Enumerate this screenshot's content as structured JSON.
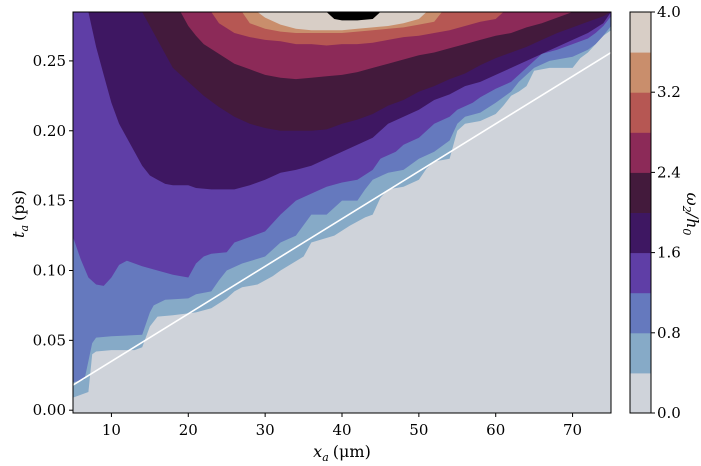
{
  "chart_data": {
    "type": "contourf",
    "xlabel": {
      "symbol": "x",
      "sub": "a",
      "unit": "(μm)"
    },
    "ylabel": {
      "symbol": "t",
      "sub": "a",
      "unit": "(ps)"
    },
    "colorbar_label": {
      "symbol": "ω",
      "sub": "2",
      "tail": "/h",
      "tail_sub": "0"
    },
    "xlim": [
      5,
      75
    ],
    "ylim": [
      -0.002,
      0.285
    ],
    "x_ticks": [
      10,
      20,
      30,
      40,
      50,
      60,
      70
    ],
    "x_tick_labels": [
      "10",
      "20",
      "30",
      "40",
      "50",
      "60",
      "70"
    ],
    "y_ticks": [
      0.0,
      0.05,
      0.1,
      0.15,
      0.2,
      0.25
    ],
    "y_tick_labels": [
      "0.00",
      "0.05",
      "0.10",
      "0.15",
      "0.20",
      "0.25"
    ],
    "levels": [
      0.0,
      0.4,
      0.8,
      1.2,
      1.6,
      2.0,
      2.4,
      2.8,
      3.2,
      3.6,
      4.0
    ],
    "level_colors": [
      "#cfd3da",
      "#86aac7",
      "#6579be",
      "#5f3ea6",
      "#3e1762",
      "#431a3c",
      "#8c2a58",
      "#b65753",
      "#c98e6c",
      "#d8cec6"
    ],
    "colorbar_ticks": [
      0.0,
      0.8,
      1.6,
      2.4,
      3.2,
      4.0
    ],
    "colorbar_tick_labels": [
      "0.0",
      "0.8",
      "1.6",
      "2.4",
      "3.2",
      "4.0"
    ],
    "boundaries": [
      {
        "level": 0.4,
        "points": [
          [
            5,
            0.009
          ],
          [
            7,
            0.013
          ],
          [
            7.5,
            0.04
          ],
          [
            8,
            0.042
          ],
          [
            10,
            0.043
          ],
          [
            13,
            0.043
          ],
          [
            14,
            0.045
          ],
          [
            15,
            0.06
          ],
          [
            16,
            0.067
          ],
          [
            18,
            0.068
          ],
          [
            21,
            0.07
          ],
          [
            23,
            0.073
          ],
          [
            25,
            0.08
          ],
          [
            26,
            0.085
          ],
          [
            27,
            0.088
          ],
          [
            29,
            0.09
          ],
          [
            31,
            0.096
          ],
          [
            32,
            0.1
          ],
          [
            35,
            0.11
          ],
          [
            36,
            0.12
          ],
          [
            39,
            0.125
          ],
          [
            41,
            0.132
          ],
          [
            43,
            0.138
          ],
          [
            44,
            0.14
          ],
          [
            45,
            0.152
          ],
          [
            46,
            0.158
          ],
          [
            48,
            0.16
          ],
          [
            50,
            0.165
          ],
          [
            51,
            0.173
          ],
          [
            52,
            0.178
          ],
          [
            54,
            0.18
          ],
          [
            55,
            0.2
          ],
          [
            56,
            0.205
          ],
          [
            58,
            0.207
          ],
          [
            60,
            0.212
          ],
          [
            61,
            0.218
          ],
          [
            62,
            0.225
          ],
          [
            63,
            0.228
          ],
          [
            64,
            0.232
          ],
          [
            65,
            0.243
          ],
          [
            67,
            0.245
          ],
          [
            70,
            0.245
          ],
          [
            71,
            0.252
          ],
          [
            72,
            0.256
          ],
          [
            73,
            0.262
          ],
          [
            74,
            0.268
          ],
          [
            75,
            0.272
          ]
        ]
      },
      {
        "level": 0.8,
        "points": [
          [
            5,
            0.02
          ],
          [
            6.5,
            0.022
          ],
          [
            7.5,
            0.048
          ],
          [
            8,
            0.052
          ],
          [
            10,
            0.053
          ],
          [
            14,
            0.054
          ],
          [
            15,
            0.07
          ],
          [
            15.5,
            0.075
          ],
          [
            17,
            0.079
          ],
          [
            20,
            0.08
          ],
          [
            21,
            0.083
          ],
          [
            23,
            0.085
          ],
          [
            24,
            0.093
          ],
          [
            25,
            0.1
          ],
          [
            27,
            0.105
          ],
          [
            30,
            0.11
          ],
          [
            32,
            0.12
          ],
          [
            34,
            0.125
          ],
          [
            36,
            0.14
          ],
          [
            38,
            0.14
          ],
          [
            40,
            0.15
          ],
          [
            42,
            0.15
          ],
          [
            43,
            0.158
          ],
          [
            44,
            0.165
          ],
          [
            46,
            0.17
          ],
          [
            48,
            0.172
          ],
          [
            50,
            0.18
          ],
          [
            52,
            0.185
          ],
          [
            54,
            0.193
          ],
          [
            55,
            0.205
          ],
          [
            56,
            0.21
          ],
          [
            58,
            0.213
          ],
          [
            60,
            0.22
          ],
          [
            62,
            0.228
          ],
          [
            63,
            0.235
          ],
          [
            65,
            0.245
          ],
          [
            67,
            0.25
          ],
          [
            70,
            0.253
          ],
          [
            72,
            0.258
          ],
          [
            73,
            0.262
          ],
          [
            74,
            0.268
          ],
          [
            75,
            0.275
          ]
        ]
      },
      {
        "level": 1.2,
        "points": [
          [
            5,
            0.124
          ],
          [
            6,
            0.108
          ],
          [
            7,
            0.095
          ],
          [
            8,
            0.09
          ],
          [
            9,
            0.089
          ],
          [
            10,
            0.095
          ],
          [
            11,
            0.104
          ],
          [
            12,
            0.107
          ],
          [
            14,
            0.103
          ],
          [
            16,
            0.1
          ],
          [
            18,
            0.097
          ],
          [
            20,
            0.095
          ],
          [
            21,
            0.105
          ],
          [
            22,
            0.11
          ],
          [
            23,
            0.112
          ],
          [
            25,
            0.113
          ],
          [
            26,
            0.12
          ],
          [
            28,
            0.124
          ],
          [
            30,
            0.128
          ],
          [
            31,
            0.134
          ],
          [
            32,
            0.14
          ],
          [
            33,
            0.145
          ],
          [
            34,
            0.15
          ],
          [
            36,
            0.155
          ],
          [
            38,
            0.16
          ],
          [
            40,
            0.163
          ],
          [
            42,
            0.165
          ],
          [
            44,
            0.172
          ],
          [
            45,
            0.18
          ],
          [
            47,
            0.185
          ],
          [
            48,
            0.19
          ],
          [
            50,
            0.195
          ],
          [
            52,
            0.205
          ],
          [
            54,
            0.21
          ],
          [
            55,
            0.215
          ],
          [
            57,
            0.22
          ],
          [
            58,
            0.224
          ],
          [
            60,
            0.23
          ],
          [
            62,
            0.235
          ],
          [
            63,
            0.24
          ],
          [
            65,
            0.25
          ],
          [
            66,
            0.255
          ],
          [
            68,
            0.258
          ],
          [
            70,
            0.262
          ],
          [
            72,
            0.266
          ],
          [
            73,
            0.27
          ],
          [
            74,
            0.275
          ],
          [
            75,
            0.282
          ]
        ]
      },
      {
        "level": 1.6,
        "points": [
          [
            7,
            0.285
          ],
          [
            8,
            0.26
          ],
          [
            9,
            0.24
          ],
          [
            10,
            0.22
          ],
          [
            11,
            0.205
          ],
          [
            12,
            0.195
          ],
          [
            13,
            0.185
          ],
          [
            14,
            0.175
          ],
          [
            15,
            0.168
          ],
          [
            16,
            0.165
          ],
          [
            17,
            0.162
          ],
          [
            18,
            0.161
          ],
          [
            20,
            0.161
          ],
          [
            21,
            0.159
          ],
          [
            23,
            0.158
          ],
          [
            26,
            0.158
          ],
          [
            28,
            0.161
          ],
          [
            30,
            0.165
          ],
          [
            32,
            0.17
          ],
          [
            34,
            0.172
          ],
          [
            36,
            0.175
          ],
          [
            38,
            0.18
          ],
          [
            40,
            0.185
          ],
          [
            42,
            0.19
          ],
          [
            44,
            0.195
          ],
          [
            46,
            0.205
          ],
          [
            48,
            0.21
          ],
          [
            50,
            0.215
          ],
          [
            52,
            0.222
          ],
          [
            54,
            0.226
          ],
          [
            56,
            0.232
          ],
          [
            58,
            0.235
          ],
          [
            60,
            0.24
          ],
          [
            62,
            0.245
          ],
          [
            64,
            0.25
          ],
          [
            66,
            0.255
          ],
          [
            68,
            0.26
          ],
          [
            70,
            0.265
          ],
          [
            72,
            0.27
          ],
          [
            74,
            0.277
          ],
          [
            75,
            0.285
          ]
        ]
      },
      {
        "level": 2.0,
        "points": [
          [
            14,
            0.285
          ],
          [
            15,
            0.275
          ],
          [
            16,
            0.265
          ],
          [
            17,
            0.255
          ],
          [
            18,
            0.245
          ],
          [
            20,
            0.235
          ],
          [
            22,
            0.225
          ],
          [
            24,
            0.217
          ],
          [
            26,
            0.21
          ],
          [
            28,
            0.205
          ],
          [
            30,
            0.202
          ],
          [
            32,
            0.2
          ],
          [
            34,
            0.2
          ],
          [
            36,
            0.2
          ],
          [
            38,
            0.201
          ],
          [
            40,
            0.205
          ],
          [
            42,
            0.208
          ],
          [
            44,
            0.212
          ],
          [
            46,
            0.218
          ],
          [
            48,
            0.222
          ],
          [
            50,
            0.228
          ],
          [
            52,
            0.232
          ],
          [
            54,
            0.237
          ],
          [
            56,
            0.241
          ],
          [
            58,
            0.247
          ],
          [
            60,
            0.252
          ],
          [
            62,
            0.256
          ],
          [
            64,
            0.26
          ],
          [
            66,
            0.265
          ],
          [
            68,
            0.27
          ],
          [
            70,
            0.274
          ],
          [
            72,
            0.278
          ],
          [
            74,
            0.282
          ],
          [
            75,
            0.285
          ]
        ]
      },
      {
        "level": 2.4,
        "points": [
          [
            19,
            0.285
          ],
          [
            20,
            0.275
          ],
          [
            21,
            0.268
          ],
          [
            22,
            0.262
          ],
          [
            24,
            0.255
          ],
          [
            26,
            0.248
          ],
          [
            28,
            0.244
          ],
          [
            30,
            0.24
          ],
          [
            32,
            0.238
          ],
          [
            34,
            0.237
          ],
          [
            36,
            0.238
          ],
          [
            38,
            0.239
          ],
          [
            40,
            0.24
          ],
          [
            42,
            0.242
          ],
          [
            44,
            0.245
          ],
          [
            46,
            0.248
          ],
          [
            48,
            0.251
          ],
          [
            50,
            0.254
          ],
          [
            52,
            0.256
          ],
          [
            54,
            0.259
          ],
          [
            56,
            0.262
          ],
          [
            58,
            0.265
          ],
          [
            60,
            0.268
          ],
          [
            62,
            0.27
          ],
          [
            64,
            0.274
          ],
          [
            66,
            0.277
          ],
          [
            68,
            0.281
          ],
          [
            70,
            0.285
          ]
        ]
      },
      {
        "level": 2.8,
        "points": [
          [
            23,
            0.285
          ],
          [
            24,
            0.277
          ],
          [
            26,
            0.27
          ],
          [
            28,
            0.267
          ],
          [
            30,
            0.265
          ],
          [
            32,
            0.264
          ],
          [
            34,
            0.262
          ],
          [
            36,
            0.262
          ],
          [
            38,
            0.261
          ],
          [
            40,
            0.262
          ],
          [
            42,
            0.262
          ],
          [
            44,
            0.263
          ],
          [
            46,
            0.265
          ],
          [
            48,
            0.267
          ],
          [
            50,
            0.268
          ],
          [
            52,
            0.27
          ],
          [
            54,
            0.272
          ],
          [
            56,
            0.275
          ],
          [
            58,
            0.278
          ],
          [
            60,
            0.28
          ],
          [
            61,
            0.285
          ]
        ]
      },
      {
        "level": 3.2,
        "points": [
          [
            27,
            0.285
          ],
          [
            28,
            0.277
          ],
          [
            30,
            0.273
          ],
          [
            32,
            0.271
          ],
          [
            34,
            0.27
          ],
          [
            36,
            0.27
          ],
          [
            38,
            0.27
          ],
          [
            40,
            0.27
          ],
          [
            42,
            0.271
          ],
          [
            44,
            0.272
          ],
          [
            46,
            0.273
          ],
          [
            48,
            0.274
          ],
          [
            50,
            0.276
          ],
          [
            52,
            0.278
          ],
          [
            53,
            0.285
          ]
        ]
      },
      {
        "level": 3.6,
        "points": [
          [
            29,
            0.285
          ],
          [
            30,
            0.281
          ],
          [
            32,
            0.276
          ],
          [
            34,
            0.273
          ],
          [
            36,
            0.272
          ],
          [
            38,
            0.272
          ],
          [
            40,
            0.272
          ],
          [
            42,
            0.273
          ],
          [
            44,
            0.274
          ],
          [
            46,
            0.275
          ],
          [
            48,
            0.277
          ],
          [
            50,
            0.28
          ],
          [
            51,
            0.285
          ]
        ]
      },
      {
        "level": 4.0,
        "points": [
          [
            38,
            0.285
          ],
          [
            39,
            0.28
          ],
          [
            40,
            0.279
          ],
          [
            42,
            0.279
          ],
          [
            44,
            0.28
          ],
          [
            45,
            0.285
          ]
        ]
      }
    ],
    "overlay_line": {
      "color": "#ffffff",
      "points": [
        [
          5,
          0.018
        ],
        [
          75,
          0.256
        ]
      ]
    }
  }
}
